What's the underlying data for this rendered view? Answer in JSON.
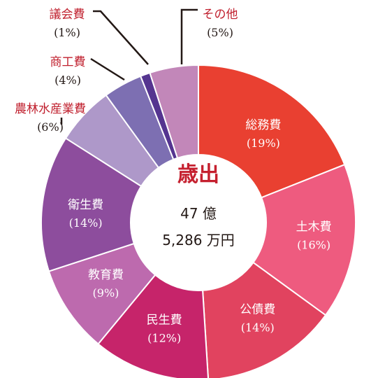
{
  "chart_data": {
    "type": "pie",
    "center_title": "歳出",
    "center_amount_line1": "47 億",
    "center_amount_line2": "5,286 万円",
    "colors": {
      "center_title": "#c5202f",
      "inside_label": "#ffffff",
      "outside_label": "#c0202e",
      "outside_pct": "#231815",
      "leader_line": "#231815"
    },
    "slices": [
      {
        "name": "総務費",
        "pct_label": "(19%)",
        "value": 19,
        "color": "#e94031"
      },
      {
        "name": "土木費",
        "pct_label": "(16%)",
        "value": 16,
        "color": "#ee5b7f"
      },
      {
        "name": "公債費",
        "pct_label": "(14%)",
        "value": 14,
        "color": "#e1435f"
      },
      {
        "name": "民生費",
        "pct_label": "(12%)",
        "value": 12,
        "color": "#c6246a"
      },
      {
        "name": "教育費",
        "pct_label": "(9%)",
        "value": 9,
        "color": "#bd6aae"
      },
      {
        "name": "衛生費",
        "pct_label": "(14%)",
        "value": 14,
        "color": "#8d4d9d"
      },
      {
        "name": "農林水産業費",
        "pct_label": "(6%)",
        "value": 6,
        "color": "#ae98c9"
      },
      {
        "name": "商工費",
        "pct_label": "(4%)",
        "value": 4,
        "color": "#7d6fb2"
      },
      {
        "name": "議会費",
        "pct_label": "(1%)",
        "value": 1,
        "color": "#553590"
      },
      {
        "name": "その他",
        "pct_label": "(5%)",
        "value": 5,
        "color": "#c287b9"
      }
    ]
  }
}
